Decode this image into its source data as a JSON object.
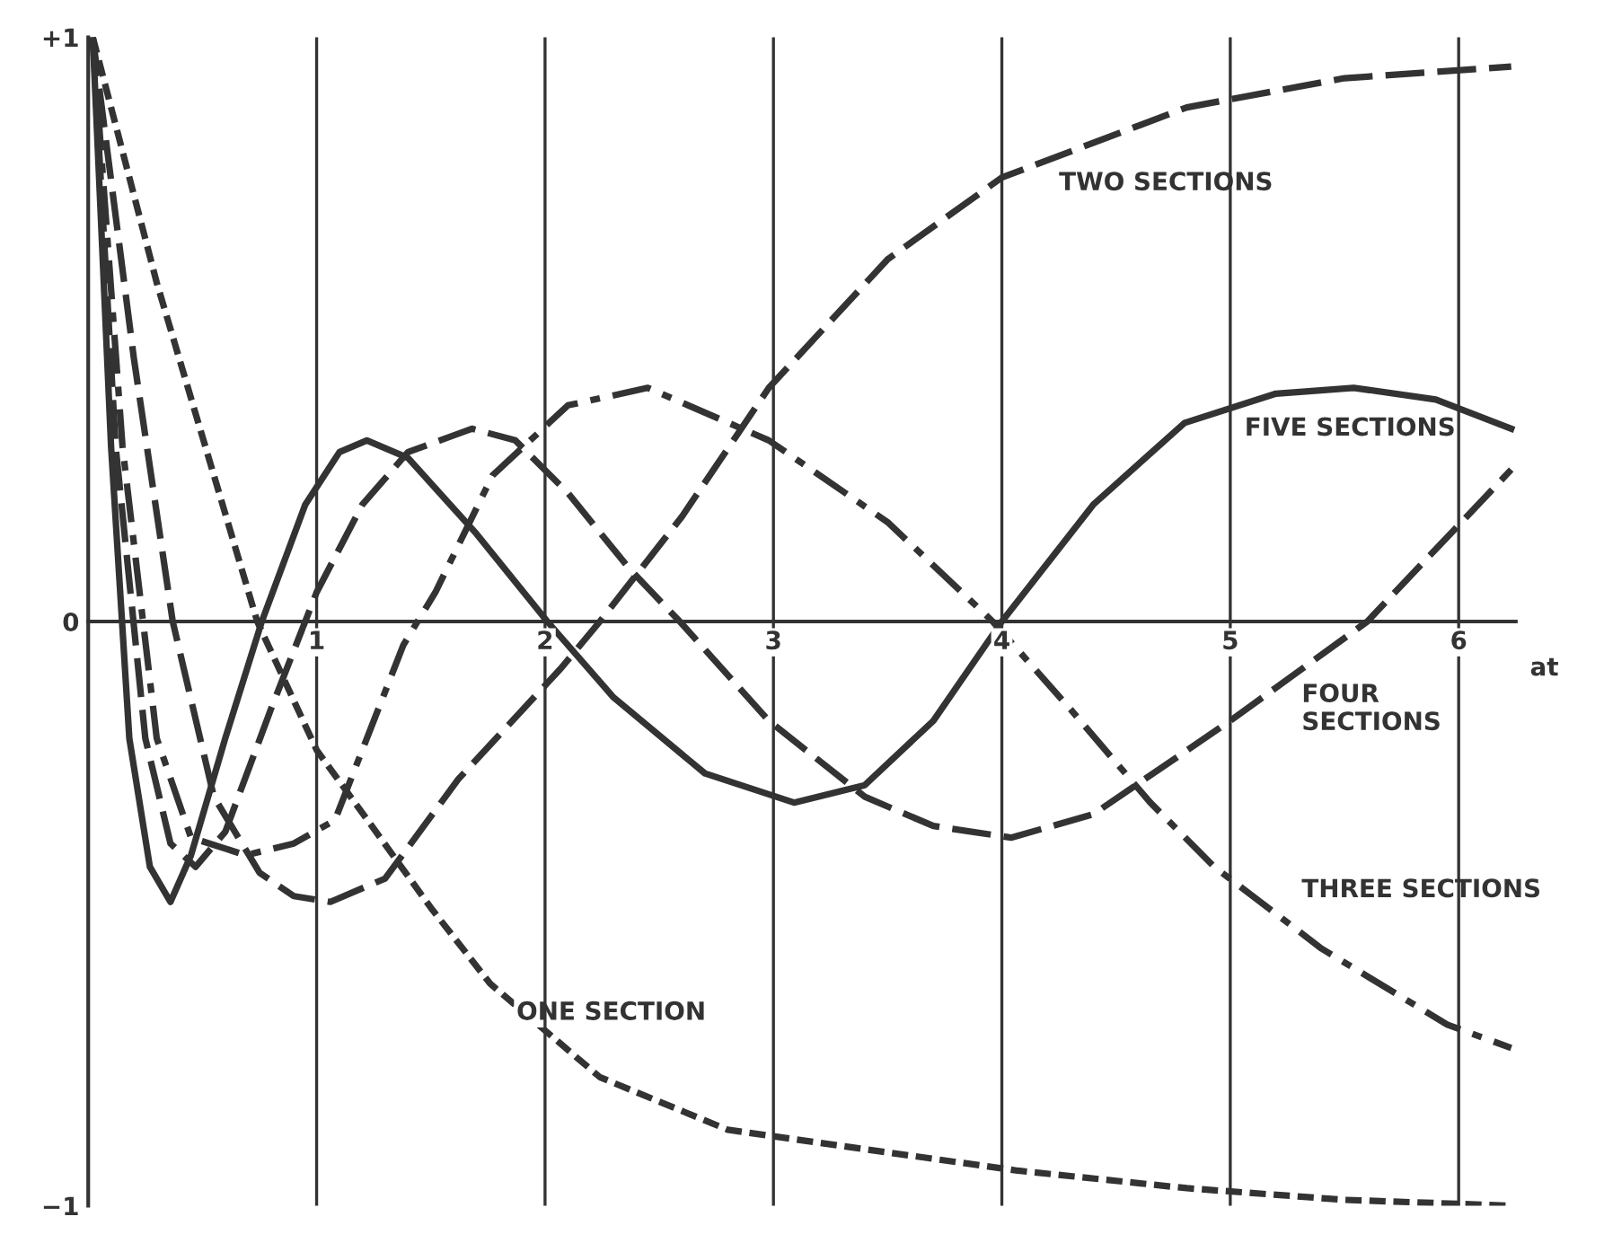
{
  "chart_data": {
    "type": "line",
    "xlabel": "at",
    "xlim": [
      0,
      6.25
    ],
    "ylim": [
      -1,
      1
    ],
    "xticks": [
      1,
      2,
      3,
      4,
      5,
      6
    ],
    "yticks": [
      {
        "value": 1,
        "label": "+1"
      },
      {
        "value": 0,
        "label": "0"
      },
      {
        "value": -1,
        "label": "−1"
      }
    ],
    "grid": "x",
    "marker": "none",
    "series": [
      {
        "name": "ONE SECTION",
        "color": "#333333",
        "line_style": "dotted",
        "x": [
          0.02,
          0.3,
          0.74,
          1.0,
          1.26,
          1.5,
          1.76,
          2.24,
          2.8,
          3.34,
          4.07,
          4.81,
          5.5,
          6.23
        ],
        "values": [
          1.0,
          0.58,
          0.0,
          -0.22,
          -0.36,
          -0.49,
          -0.62,
          -0.78,
          -0.87,
          -0.9,
          -0.94,
          -0.97,
          -0.99,
          -1.0
        ]
      },
      {
        "name": "TWO SECTIONS",
        "color": "#333333",
        "line_style": "dashed",
        "x": [
          0.02,
          0.2,
          0.37,
          0.55,
          0.75,
          0.9,
          1.06,
          1.3,
          1.62,
          2.07,
          2.24,
          2.6,
          2.98,
          3.5,
          4.0,
          4.81,
          5.5,
          6.23
        ],
        "values": [
          1.0,
          0.45,
          0.0,
          -0.3,
          -0.43,
          -0.47,
          -0.48,
          -0.44,
          -0.27,
          -0.08,
          0.0,
          0.18,
          0.4,
          0.62,
          0.76,
          0.88,
          0.93,
          0.95
        ]
      },
      {
        "name": "THREE SECTIONS",
        "color": "#333333",
        "line_style": "dashdot",
        "x": [
          0.02,
          0.15,
          0.3,
          0.45,
          0.69,
          0.9,
          1.08,
          1.38,
          1.52,
          1.77,
          2.1,
          2.45,
          2.98,
          3.5,
          3.96,
          4.3,
          4.65,
          4.93,
          5.4,
          5.95,
          6.23
        ],
        "values": [
          1.0,
          0.3,
          -0.2,
          -0.37,
          -0.4,
          -0.38,
          -0.34,
          -0.04,
          0.05,
          0.25,
          0.37,
          0.4,
          0.31,
          0.17,
          0.0,
          -0.15,
          -0.31,
          -0.42,
          -0.56,
          -0.69,
          -0.73
        ]
      },
      {
        "name": "FOUR\nSECTIONS",
        "color": "#333333",
        "line_style": "dashed",
        "x": [
          0.02,
          0.12,
          0.25,
          0.36,
          0.47,
          0.6,
          0.8,
          1.0,
          1.2,
          1.4,
          1.68,
          1.87,
          2.1,
          2.37,
          2.59,
          2.98,
          3.4,
          3.7,
          4.04,
          4.4,
          5.0,
          5.6,
          6.23
        ],
        "values": [
          1.0,
          0.3,
          -0.2,
          -0.38,
          -0.42,
          -0.36,
          -0.15,
          0.05,
          0.2,
          0.29,
          0.33,
          0.31,
          0.22,
          0.09,
          0.0,
          -0.17,
          -0.3,
          -0.35,
          -0.37,
          -0.33,
          -0.17,
          0.0,
          0.26
        ]
      },
      {
        "name": "FIVE SECTIONS",
        "color": "#333333",
        "line_style": "solid",
        "x": [
          0.02,
          0.1,
          0.18,
          0.27,
          0.36,
          0.45,
          0.6,
          0.76,
          0.95,
          1.1,
          1.22,
          1.4,
          1.7,
          2.01,
          2.3,
          2.7,
          3.09,
          3.4,
          3.7,
          4.0,
          4.4,
          4.8,
          5.2,
          5.54,
          5.9,
          6.23
        ],
        "values": [
          1.0,
          0.3,
          -0.2,
          -0.42,
          -0.48,
          -0.4,
          -0.2,
          0.0,
          0.2,
          0.29,
          0.31,
          0.28,
          0.15,
          0.0,
          -0.13,
          -0.26,
          -0.31,
          -0.28,
          -0.17,
          0.0,
          0.2,
          0.34,
          0.39,
          0.4,
          0.38,
          0.33
        ]
      }
    ]
  }
}
